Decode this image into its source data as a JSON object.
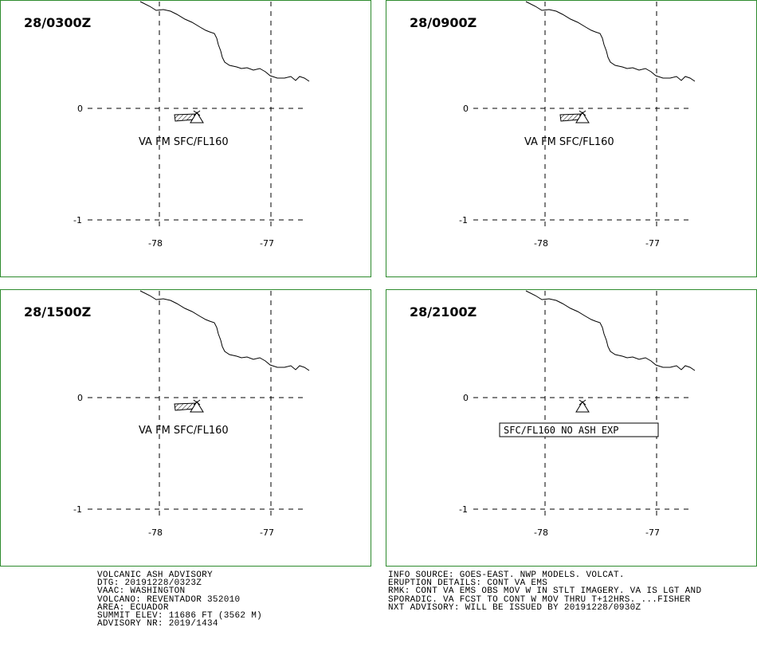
{
  "panels": [
    {
      "time_label": "28/0300Z",
      "ash_label": "VA FM SFC/FL160",
      "ash_present": true,
      "boxed": false
    },
    {
      "time_label": "28/0900Z",
      "ash_label": "VA FM SFC/FL160",
      "ash_present": true,
      "boxed": false
    },
    {
      "time_label": "28/1500Z",
      "ash_label": "VA FM SFC/FL160",
      "ash_present": true,
      "boxed": false
    },
    {
      "time_label": "28/2100Z",
      "ash_label": "SFC/FL160 NO ASH EXP",
      "ash_present": false,
      "boxed": true
    }
  ],
  "axes": {
    "lat_ticks": [
      "0",
      "-1"
    ],
    "lon_ticks": [
      "-78",
      "-77"
    ]
  },
  "advisory_left": [
    "VOLCANIC ASH ADVISORY",
    "DTG: 20191228/0323Z",
    "VAAC: WASHINGTON",
    "VOLCANO: REVENTADOR 352010",
    "AREA: ECUADOR",
    "SUMMIT ELEV: 11686 FT (3562 M)",
    "ADVISORY NR: 2019/1434"
  ],
  "advisory_right": [
    "INFO SOURCE: GOES-EAST. NWP MODELS. VOLCAT.",
    "ERUPTION DETAILS: CONT VA EMS",
    "RMK: CONT VA EMS OBS MOV W IN STLT IMAGERY. VA IS LGT AND",
    "SPORADIC. VA FCST TO CONT W MOV THRU T+12HRS. ...FISHER",
    "NXT ADVISORY: WILL BE ISSUED BY 20191228/0930Z"
  ],
  "colors": {
    "frame": "#2e8b2e",
    "lines": "#000000",
    "background": "#ffffff"
  }
}
